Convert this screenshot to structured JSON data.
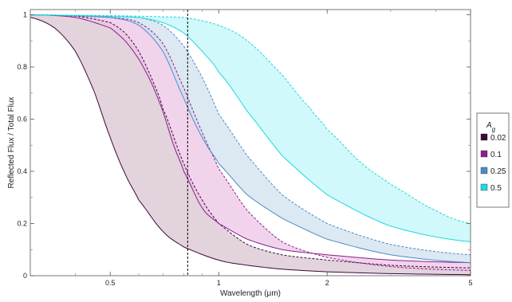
{
  "chart_data": {
    "type": "area",
    "xlabel": "Wavelength (μm)",
    "ylabel": "Reflected Flux / Total Flux",
    "x_scale": "log",
    "xlim": [
      0.3,
      5
    ],
    "ylim": [
      0,
      1.02
    ],
    "x_ticks": [
      {
        "value": 0.5,
        "label": "0.5"
      },
      {
        "value": 1,
        "label": "1"
      },
      {
        "value": 2,
        "label": "2"
      },
      {
        "value": 5,
        "label": "5"
      }
    ],
    "y_ticks": [
      {
        "value": 0,
        "label": "0"
      },
      {
        "value": 0.2,
        "label": "0.2"
      },
      {
        "value": 0.4,
        "label": "0.4"
      },
      {
        "value": 0.6,
        "label": "0.6"
      },
      {
        "value": 0.8,
        "label": "0.8"
      },
      {
        "value": 1,
        "label": "1"
      }
    ],
    "vertical_line": {
      "x": 0.82,
      "style": "dashed",
      "color": "#000000"
    },
    "legend": {
      "title": "A",
      "title_subscript": "g",
      "placement": "right"
    },
    "series": [
      {
        "name": "0.02",
        "color": "#3a0a3a",
        "fill": "#d8c4d0",
        "lower": {
          "x": [
            0.3,
            0.35,
            0.4,
            0.45,
            0.5,
            0.55,
            0.6,
            0.7,
            0.8,
            1.0,
            1.2,
            1.5,
            2.0,
            3.0,
            5.0
          ],
          "y": [
            0.99,
            0.95,
            0.86,
            0.71,
            0.53,
            0.39,
            0.29,
            0.17,
            0.11,
            0.06,
            0.04,
            0.025,
            0.015,
            0.008,
            0.004
          ]
        },
        "upper": {
          "x": [
            0.3,
            0.4,
            0.5,
            0.55,
            0.6,
            0.65,
            0.7,
            0.8,
            0.9,
            1.0,
            1.2,
            1.5,
            2.0,
            3.0,
            5.0
          ],
          "y": [
            1.0,
            0.995,
            0.97,
            0.93,
            0.86,
            0.76,
            0.64,
            0.43,
            0.29,
            0.2,
            0.12,
            0.08,
            0.06,
            0.04,
            0.03
          ]
        }
      },
      {
        "name": "0.1",
        "color": "#8a1f8a",
        "fill": "#ecc6e6",
        "lower": {
          "x": [
            0.3,
            0.4,
            0.5,
            0.55,
            0.6,
            0.65,
            0.7,
            0.75,
            0.8,
            0.9,
            1.0,
            1.2,
            1.5,
            2.0,
            3.0,
            5.0
          ],
          "y": [
            1.0,
            0.99,
            0.95,
            0.9,
            0.83,
            0.74,
            0.63,
            0.5,
            0.4,
            0.26,
            0.2,
            0.14,
            0.1,
            0.08,
            0.06,
            0.05
          ]
        },
        "upper": {
          "x": [
            0.3,
            0.5,
            0.6,
            0.7,
            0.8,
            0.9,
            1.0,
            1.2,
            1.5,
            2.0,
            3.0,
            5.0
          ],
          "y": [
            1.0,
            0.99,
            0.97,
            0.89,
            0.72,
            0.55,
            0.41,
            0.25,
            0.13,
            0.07,
            0.035,
            0.02
          ]
        }
      },
      {
        "name": "0.25",
        "color": "#4a8cc8",
        "fill": "#d0e0ee",
        "lower": {
          "x": [
            0.3,
            0.5,
            0.6,
            0.7,
            0.8,
            0.9,
            1.0,
            1.2,
            1.5,
            2.0,
            3.0,
            5.0
          ],
          "y": [
            1.0,
            0.99,
            0.96,
            0.86,
            0.68,
            0.53,
            0.43,
            0.31,
            0.22,
            0.14,
            0.08,
            0.05
          ]
        },
        "upper": {
          "x": [
            0.3,
            0.6,
            0.7,
            0.8,
            0.9,
            1.0,
            1.2,
            1.5,
            2.0,
            3.0,
            5.0
          ],
          "y": [
            1.0,
            0.99,
            0.96,
            0.88,
            0.76,
            0.62,
            0.46,
            0.31,
            0.2,
            0.12,
            0.08
          ]
        }
      },
      {
        "name": "0.5",
        "color": "#1ed8e0",
        "fill": "#c2f6f8",
        "lower": {
          "x": [
            0.3,
            0.6,
            0.7,
            0.8,
            0.9,
            1.0,
            1.2,
            1.5,
            2.0,
            3.0,
            5.0
          ],
          "y": [
            1.0,
            0.99,
            0.97,
            0.93,
            0.86,
            0.78,
            0.63,
            0.46,
            0.31,
            0.19,
            0.13
          ]
        },
        "upper": {
          "x": [
            0.3,
            0.8,
            1.0,
            1.2,
            1.5,
            1.8,
            2.0,
            2.5,
            3.0,
            4.0,
            5.0
          ],
          "y": [
            1.0,
            0.99,
            0.96,
            0.9,
            0.77,
            0.64,
            0.56,
            0.43,
            0.35,
            0.25,
            0.2
          ]
        }
      }
    ]
  }
}
